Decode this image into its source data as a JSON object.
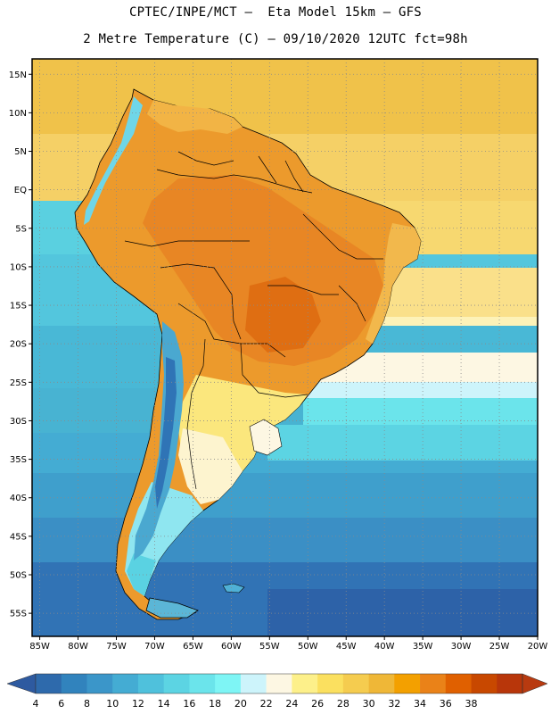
{
  "header": {
    "line1": "CPTEC/INPE/MCT –  Eta Model 15km – GFS",
    "line2": "2 Metre Temperature (C) – 09/10/2020 12UTC fct=98h"
  },
  "map": {
    "variable": "2 Metre Temperature",
    "units": "C",
    "lat_range": [
      -58,
      17
    ],
    "lon_range": [
      -86,
      -20
    ],
    "lat_labels": [
      "15N",
      "10N",
      "5N",
      "EQ",
      "5S",
      "10S",
      "15S",
      "20S",
      "25S",
      "30S",
      "35S",
      "40S",
      "45S",
      "50S",
      "55S"
    ],
    "lat_values": [
      15,
      10,
      5,
      0,
      -5,
      -10,
      -15,
      -20,
      -25,
      -30,
      -35,
      -40,
      -45,
      -50,
      -55
    ],
    "lon_labels": [
      "85W",
      "80W",
      "75W",
      "70W",
      "65W",
      "60W",
      "55W",
      "50W",
      "45W",
      "40W",
      "35W",
      "30W",
      "25W",
      "20W"
    ],
    "lon_values": [
      -85,
      -80,
      -75,
      -70,
      -65,
      -60,
      -55,
      -50,
      -45,
      -40,
      -35,
      -30,
      -25,
      -20
    ]
  },
  "colorbar": {
    "labels": [
      "4",
      "6",
      "8",
      "10",
      "12",
      "14",
      "16",
      "18",
      "20",
      "22",
      "24",
      "26",
      "28",
      "30",
      "32",
      "34",
      "36",
      "38"
    ],
    "colors": [
      "#2e6aac",
      "#3183bd",
      "#3b96c9",
      "#44acd3",
      "#4fc1dc",
      "#5cd4e3",
      "#6be4eb",
      "#7ef5f5",
      "#cdf4fb",
      "#fdf7e3",
      "#fdf08a",
      "#fbe05f",
      "#f5cc4f",
      "#efb737",
      "#f3a000",
      "#ea8218",
      "#e06000",
      "#c84800",
      "#b8360a"
    ],
    "left_arrow_color": "#2e5aa0",
    "right_arrow_color": "#b83a10"
  }
}
